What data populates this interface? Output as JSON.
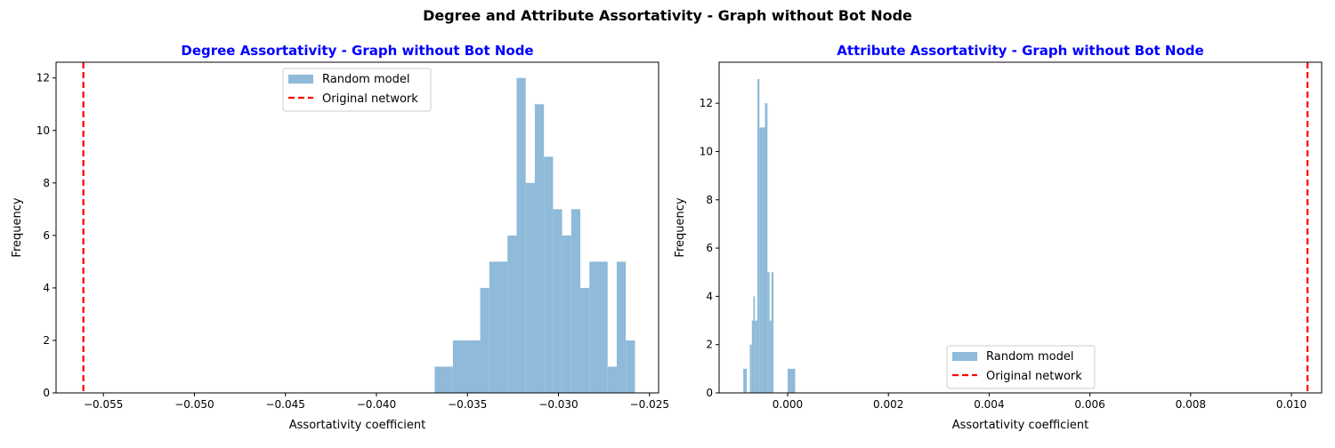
{
  "figure": {
    "suptitle": "Degree and Attribute Assortativity - Graph without Bot Node"
  },
  "colors": {
    "bar": "#8fbad9",
    "reference_line": "#ff0000",
    "title": "#0000ff",
    "axes": "#000000"
  },
  "chart_data": [
    {
      "type": "bar",
      "title": "Degree Assortativity - Graph without Bot Node",
      "xlabel": "Assortativity coefficient",
      "ylabel": "Frequency",
      "xlim": [
        -0.0576,
        -0.0245
      ],
      "ylim": [
        0,
        12.6
      ],
      "xticks": [
        -0.055,
        -0.05,
        -0.045,
        -0.04,
        -0.035,
        -0.03,
        -0.025
      ],
      "xtick_labels": [
        "−0.055",
        "−0.050",
        "−0.045",
        "−0.040",
        "−0.035",
        "−0.030",
        "−0.025"
      ],
      "yticks": [
        0,
        2,
        4,
        6,
        8,
        10,
        12
      ],
      "ytick_labels": [
        "0",
        "2",
        "4",
        "6",
        "8",
        "10",
        "12"
      ],
      "bins": [
        {
          "x0": -0.0368,
          "x1": -0.0358,
          "y": 1
        },
        {
          "x0": -0.0358,
          "x1": -0.0343,
          "y": 2
        },
        {
          "x0": -0.0343,
          "x1": -0.0338,
          "y": 4
        },
        {
          "x0": -0.0338,
          "x1": -0.0328,
          "y": 5
        },
        {
          "x0": -0.0328,
          "x1": -0.0323,
          "y": 6
        },
        {
          "x0": -0.0323,
          "x1": -0.0318,
          "y": 12
        },
        {
          "x0": -0.0318,
          "x1": -0.0313,
          "y": 8
        },
        {
          "x0": -0.0313,
          "x1": -0.0308,
          "y": 11
        },
        {
          "x0": -0.0308,
          "x1": -0.0303,
          "y": 9
        },
        {
          "x0": -0.0303,
          "x1": -0.0298,
          "y": 7
        },
        {
          "x0": -0.0298,
          "x1": -0.0293,
          "y": 6
        },
        {
          "x0": -0.0293,
          "x1": -0.0288,
          "y": 7
        },
        {
          "x0": -0.0288,
          "x1": -0.0283,
          "y": 4
        },
        {
          "x0": -0.0283,
          "x1": -0.0273,
          "y": 5
        },
        {
          "x0": -0.0273,
          "x1": -0.0268,
          "y": 1
        },
        {
          "x0": -0.0268,
          "x1": -0.0263,
          "y": 5
        },
        {
          "x0": -0.0263,
          "x1": -0.0258,
          "y": 2
        }
      ],
      "reference_line": {
        "x": -0.0561
      },
      "legend": {
        "placement": "upper center",
        "entries": [
          {
            "label": "Random model",
            "kind": "patch"
          },
          {
            "label": "Original network",
            "kind": "dashed-line"
          }
        ]
      }
    },
    {
      "type": "bar",
      "title": "Attribute Assortativity - Graph without Bot Node",
      "xlabel": "Assortativity coefficient",
      "ylabel": "Frequency",
      "xlim": [
        -0.00136,
        0.0106
      ],
      "ylim": [
        0,
        13.7
      ],
      "xticks": [
        0.0,
        0.002,
        0.004,
        0.006,
        0.008,
        0.01
      ],
      "xtick_labels": [
        "0.000",
        "0.002",
        "0.004",
        "0.006",
        "0.008",
        "0.010"
      ],
      "yticks": [
        0,
        2,
        4,
        6,
        8,
        10,
        12
      ],
      "ytick_labels": [
        "0",
        "2",
        "4",
        "6",
        "8",
        "10",
        "12"
      ],
      "bins": [
        {
          "x0": -0.00088,
          "x1": -0.00081,
          "y": 1
        },
        {
          "x0": -0.00075,
          "x1": -0.00071,
          "y": 2
        },
        {
          "x0": -0.00071,
          "x1": -0.00068,
          "y": 3
        },
        {
          "x0": -0.00068,
          "x1": -0.00065,
          "y": 4
        },
        {
          "x0": -0.00065,
          "x1": -0.0006,
          "y": 3
        },
        {
          "x0": -0.0006,
          "x1": -0.00056,
          "y": 13
        },
        {
          "x0": -0.00056,
          "x1": -0.00051,
          "y": 11
        },
        {
          "x0": -0.00051,
          "x1": -0.00045,
          "y": 11
        },
        {
          "x0": -0.00045,
          "x1": -0.0004,
          "y": 12
        },
        {
          "x0": -0.0004,
          "x1": -0.00036,
          "y": 5
        },
        {
          "x0": -0.00036,
          "x1": -0.00032,
          "y": 3
        },
        {
          "x0": -0.00032,
          "x1": -0.00028,
          "y": 5
        },
        {
          "x0": 0.0,
          "x1": 0.00015,
          "y": 1
        }
      ],
      "reference_line": {
        "x": 0.01032
      },
      "legend": {
        "placement": "lower center",
        "entries": [
          {
            "label": "Random model",
            "kind": "patch"
          },
          {
            "label": "Original network",
            "kind": "dashed-line"
          }
        ]
      }
    }
  ]
}
